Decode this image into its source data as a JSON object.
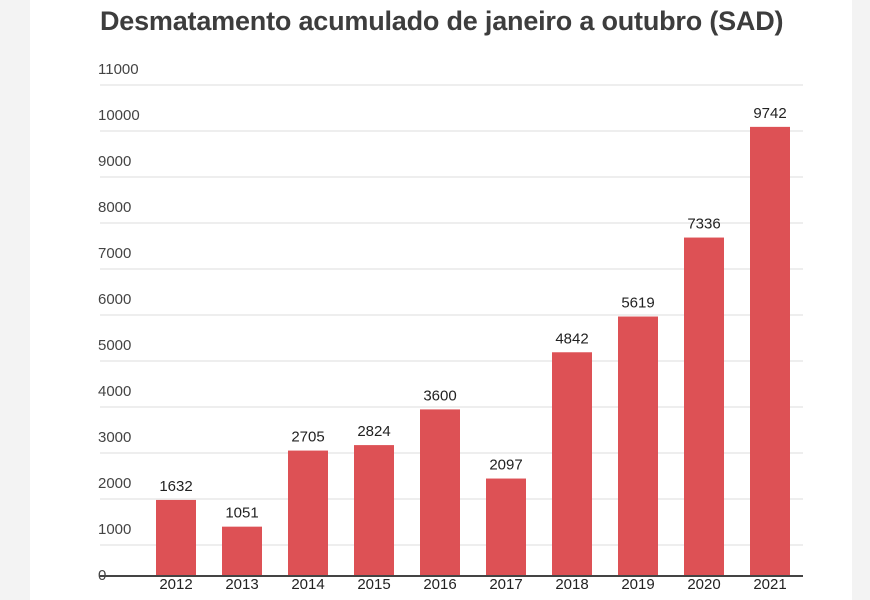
{
  "chart_data": {
    "type": "bar",
    "title": "Desmatamento acumulado de janeiro a outubro (SAD)",
    "xlabel": "",
    "ylabel": "",
    "categories": [
      "2012",
      "2013",
      "2014",
      "2015",
      "2016",
      "2017",
      "2018",
      "2019",
      "2020",
      "2021"
    ],
    "values": [
      1632,
      1051,
      2705,
      2824,
      3600,
      2097,
      4842,
      5619,
      7336,
      9742
    ],
    "ylim": [
      0,
      11000
    ],
    "yticks": [
      0,
      1000,
      2000,
      3000,
      4000,
      5000,
      6000,
      7000,
      8000,
      9000,
      10000,
      11000
    ],
    "grid": true,
    "bar_color": "#dd5155",
    "data_labels": true
  }
}
